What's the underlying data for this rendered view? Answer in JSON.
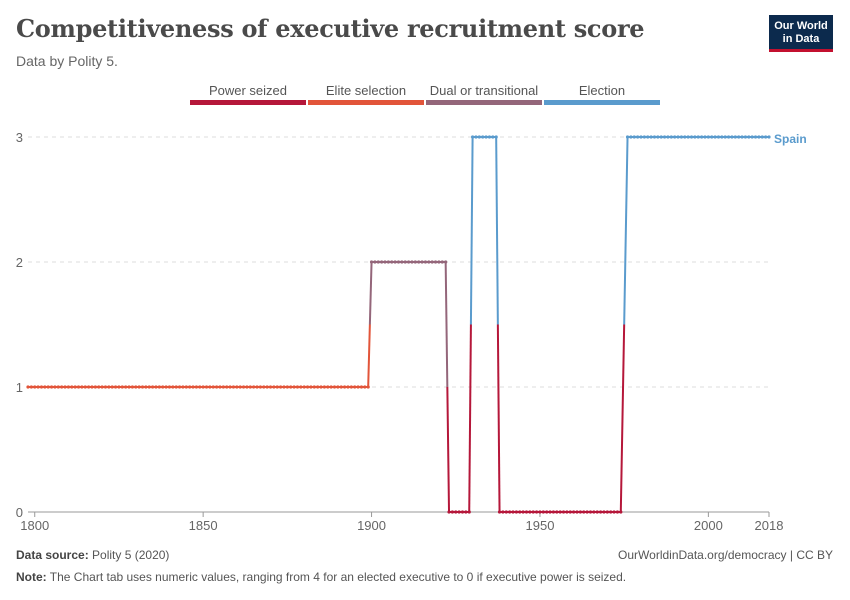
{
  "header": {
    "title": "Competitiveness of executive recruitment score",
    "subtitle": "Data by Polity 5.",
    "logo_line1": "Our World",
    "logo_line2": "in Data"
  },
  "footer": {
    "source_label": "Data source:",
    "source_text": "Polity 5 (2020)",
    "credit": "OurWorldinData.org/democracy | CC BY",
    "note_label": "Note:",
    "note_text": "The Chart tab uses numeric values, ranging from 4 for an elected executive to 0 if executive power is seized."
  },
  "chart_data": {
    "type": "line",
    "title": "Competitiveness of executive recruitment score",
    "xlim": [
      1798,
      2018
    ],
    "ylim": [
      0,
      3
    ],
    "x_ticks": [
      "1800",
      "1850",
      "1900",
      "1950",
      "2000",
      "2018"
    ],
    "y_ticks": [
      "0",
      "1",
      "2",
      "3"
    ],
    "legend": [
      {
        "label": "Power seized",
        "color": "#b5173a"
      },
      {
        "label": "Elite selection",
        "color": "#e2553a"
      },
      {
        "label": "Dual or transitional",
        "color": "#94667a"
      },
      {
        "label": "Election",
        "color": "#5a9bcd"
      }
    ],
    "series": [
      {
        "name": "Spain",
        "segments": [
          {
            "from": 1798,
            "to": 1899,
            "value": 1
          },
          {
            "from": 1900,
            "to": 1922,
            "value": 2
          },
          {
            "from": 1923,
            "to": 1929,
            "value": 0
          },
          {
            "from": 1930,
            "to": 1937,
            "value": 3
          },
          {
            "from": 1938,
            "to": 1974,
            "value": 0
          },
          {
            "from": 1976,
            "to": 2018,
            "value": 3
          }
        ]
      }
    ]
  }
}
